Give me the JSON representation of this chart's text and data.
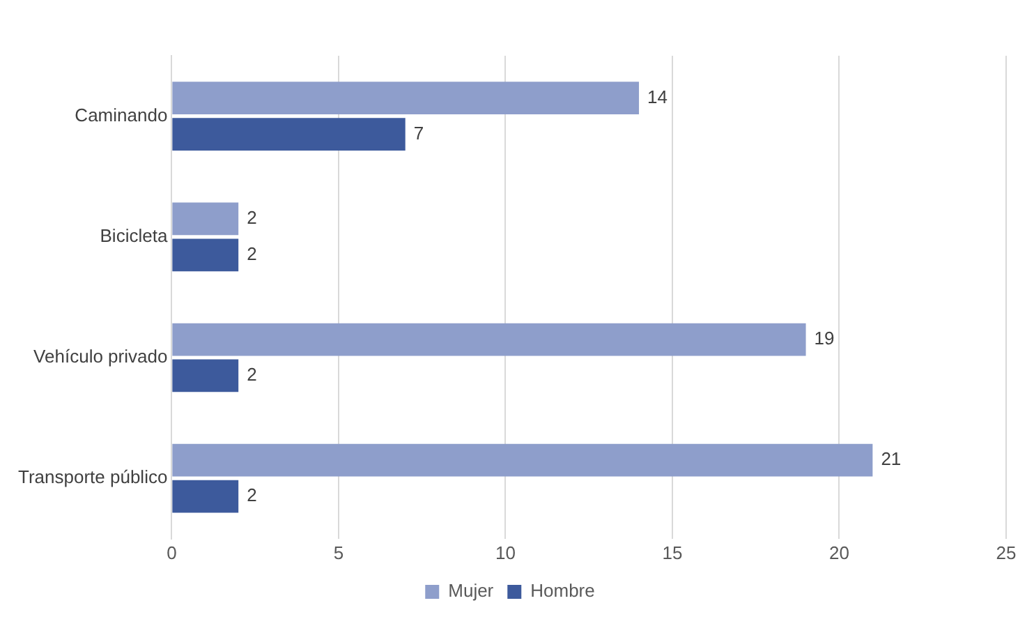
{
  "chart_data": {
    "type": "bar",
    "orientation": "horizontal",
    "categories": [
      "Caminando",
      "Bicicleta",
      "Vehículo privado",
      "Transporte público"
    ],
    "series": [
      {
        "name": "Mujer",
        "color": "#8e9ecb",
        "values": [
          14,
          2,
          19,
          21
        ]
      },
      {
        "name": "Hombre",
        "color": "#3d5a9c",
        "values": [
          7,
          2,
          2,
          2
        ]
      }
    ],
    "xlim": [
      0,
      25
    ],
    "xticks": [
      0,
      5,
      10,
      15,
      20,
      25
    ],
    "grid": "x",
    "legend": "bottom",
    "data_labels": true
  }
}
